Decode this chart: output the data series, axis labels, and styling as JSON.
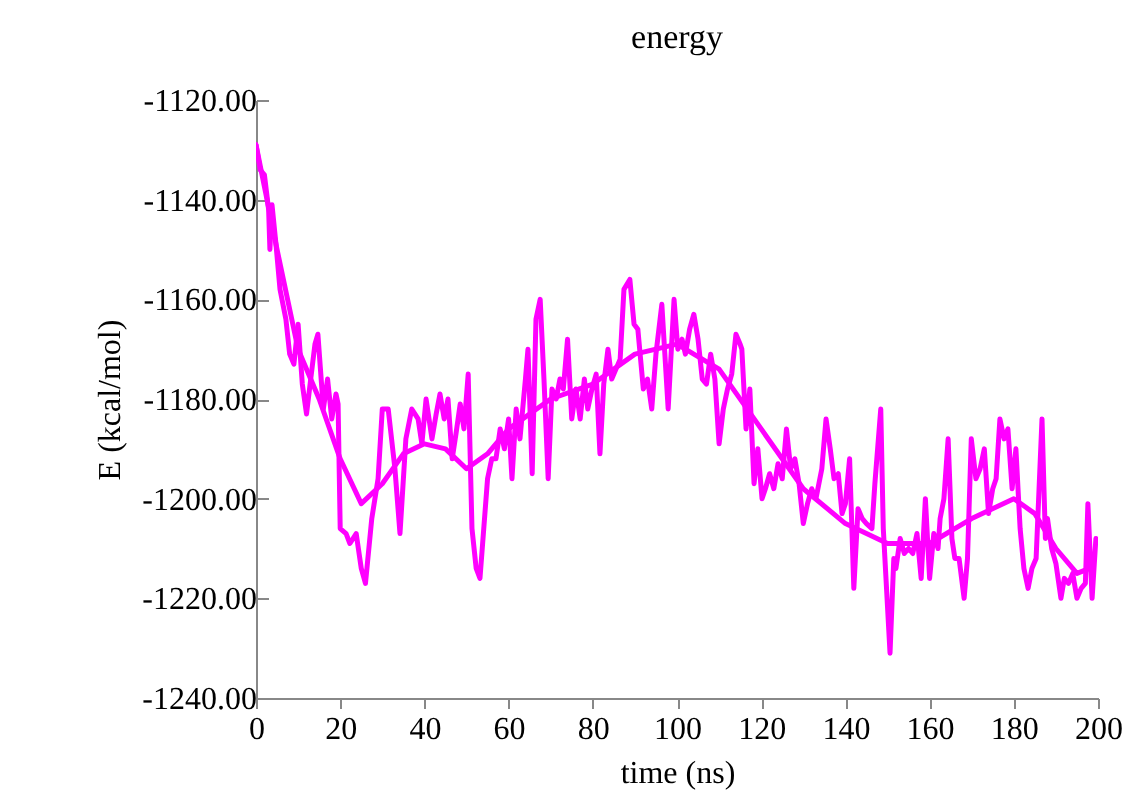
{
  "chart_data": {
    "type": "line",
    "title": "energy",
    "xlabel": "time (ns)",
    "ylabel": "E (kcal/mol)",
    "xlim": [
      0,
      200
    ],
    "xticks": [
      0,
      20,
      40,
      60,
      80,
      100,
      120,
      140,
      160,
      180,
      200
    ],
    "ylim": [
      -1240,
      -1120
    ],
    "yticks": [
      {
        "value": -1240,
        "label": "-1240.00"
      },
      {
        "value": -1220,
        "label": "-1220.00"
      },
      {
        "value": -1200,
        "label": "-1200.00"
      },
      {
        "value": -1180,
        "label": "-1180.00"
      },
      {
        "value": -1160,
        "label": "-1160.00"
      },
      {
        "value": -1140,
        "label": "-1140.00"
      },
      {
        "value": -1120,
        "label": "-1120.00"
      }
    ],
    "grid": false,
    "marker": "none",
    "line_style": "solid",
    "series": [
      {
        "color": "#ff00ff",
        "x": [
          0,
          1,
          2,
          3,
          3.3,
          3.8,
          4.75,
          5.7,
          7.1,
          8,
          9,
          10,
          11,
          12,
          13,
          14,
          14.7,
          16,
          17,
          18,
          19,
          19.5,
          20,
          21.4,
          22.3,
          23.8,
          25,
          26,
          27.5,
          29,
          30,
          31.4,
          33,
          34.2,
          35.6,
          37,
          38.5,
          39.4,
          40.4,
          41.8,
          42.8,
          43.7,
          44.7,
          45.6,
          46.6,
          47.5,
          48.5,
          49.4,
          50.4,
          51.3,
          52.3,
          53.2,
          55,
          56,
          57,
          58,
          59,
          60,
          60.8,
          61.8,
          62.7,
          64,
          64.6,
          65.6,
          66.5,
          67.5,
          68.4,
          69.4,
          70.3,
          71.3,
          72.2,
          73,
          74,
          75,
          76,
          77,
          78,
          78.8,
          79.8,
          80.8,
          81.7,
          82.6,
          83.6,
          84.5,
          85.5,
          86.5,
          87.4,
          88.8,
          89.8,
          90.7,
          92,
          93,
          94,
          95,
          96.4,
          97.9,
          99.3,
          100.2,
          101.2,
          102,
          103,
          104,
          105,
          106,
          107,
          108,
          109,
          110,
          111,
          112,
          113,
          114,
          115,
          115.4,
          116.4,
          117.3,
          118.3,
          119.2,
          120.2,
          121,
          122,
          123,
          124,
          125,
          126,
          127,
          128,
          129,
          130,
          131,
          132,
          133,
          134.4,
          135.4,
          136.4,
          137.3,
          138.3,
          139.2,
          140,
          141,
          142,
          143,
          144,
          145,
          146.3,
          147,
          148.4,
          149,
          150.6,
          151.5,
          152,
          153,
          154,
          155,
          156,
          157,
          158,
          159,
          160,
          161,
          162,
          162.5,
          163.4,
          164.4,
          165.3,
          166,
          167,
          168.2,
          169,
          169.9,
          171,
          172,
          173,
          174,
          175,
          175.8,
          176.7,
          177.7,
          178.6,
          179.6,
          180.5,
          181.5,
          182.4,
          183.4,
          184.3,
          185.3,
          186.7,
          187.5,
          188,
          189,
          190,
          191.2,
          192,
          193,
          194,
          195,
          196,
          197,
          197.6,
          198.6,
          199.5
        ],
        "values": [
          -1129,
          -1134,
          -1135,
          -1142,
          -1150,
          -1141,
          -1149,
          -1158,
          -1164,
          -1171,
          -1173,
          -1165,
          -1177,
          -1183,
          -1176,
          -1169,
          -1167,
          -1182,
          -1176,
          -1184,
          -1179,
          -1181,
          -1206,
          -1207,
          -1209,
          -1207,
          -1214,
          -1217,
          -1204,
          -1196,
          -1182,
          -1182,
          -1194,
          -1207,
          -1188,
          -1182,
          -1184,
          -1189,
          -1180,
          -1188,
          -1183,
          -1179,
          -1184,
          -1180,
          -1192,
          -1187,
          -1181,
          -1186,
          -1175,
          -1206,
          -1214,
          -1216,
          -1196,
          -1192,
          -1192,
          -1186,
          -1190,
          -1184,
          -1196,
          -1182,
          -1188,
          -1176,
          -1170,
          -1195,
          -1164,
          -1160,
          -1176,
          -1196,
          -1178,
          -1180,
          -1176,
          -1178,
          -1168,
          -1184,
          -1178,
          -1184,
          -1176,
          -1182,
          -1178,
          -1175,
          -1191,
          -1177,
          -1170,
          -1176,
          -1174,
          -1172,
          -1158,
          -1156,
          -1165,
          -1166,
          -1178,
          -1176,
          -1182,
          -1171,
          -1161,
          -1182,
          -1160,
          -1170,
          -1168,
          -1171,
          -1166,
          -1163,
          -1168,
          -1176,
          -1177,
          -1171,
          -1176,
          -1189,
          -1182,
          -1178,
          -1175,
          -1167,
          -1169,
          -1170,
          -1186,
          -1178,
          -1197,
          -1190,
          -1200,
          -1198,
          -1195,
          -1198,
          -1193,
          -1196,
          -1186,
          -1194,
          -1192,
          -1197,
          -1205,
          -1201,
          -1198,
          -1200,
          -1194,
          -1184,
          -1190,
          -1196,
          -1195,
          -1203,
          -1201,
          -1192,
          -1218,
          -1202,
          -1204,
          -1205,
          -1206,
          -1197,
          -1182,
          -1206,
          -1231,
          -1212,
          -1214,
          -1208,
          -1211,
          -1210,
          -1211,
          -1207,
          -1216,
          -1200,
          -1216,
          -1207,
          -1210,
          -1204,
          -1200,
          -1188,
          -1208,
          -1212,
          -1212,
          -1220,
          -1212,
          -1188,
          -1196,
          -1194,
          -1190,
          -1203,
          -1198,
          -1196,
          -1184,
          -1188,
          -1186,
          -1198,
          -1190,
          -1206,
          -1214,
          -1218,
          -1214,
          -1212,
          -1184,
          -1208,
          -1204,
          -1210,
          -1213,
          -1220,
          -1216,
          -1217,
          -1215,
          -1220,
          -1218,
          -1217,
          -1201,
          -1220,
          -1208
        ]
      },
      {
        "color": "#ff00ff",
        "x": [
          0,
          5,
          10,
          15,
          20,
          25,
          30,
          35,
          40,
          45,
          50,
          55,
          60,
          70,
          80,
          90,
          100,
          110,
          120,
          130,
          140,
          150,
          160,
          170,
          180,
          185,
          190,
          195,
          198
        ],
        "values": [
          -1129,
          -1150,
          -1170,
          -1180,
          -1192,
          -1201,
          -1197,
          -1191,
          -1189,
          -1190,
          -1194,
          -1191,
          -1186,
          -1180,
          -1177,
          -1171,
          -1169,
          -1174,
          -1186,
          -1198,
          -1205,
          -1209,
          -1209,
          -1204,
          -1200,
          -1203,
          -1210,
          -1215,
          -1214
        ]
      }
    ]
  }
}
